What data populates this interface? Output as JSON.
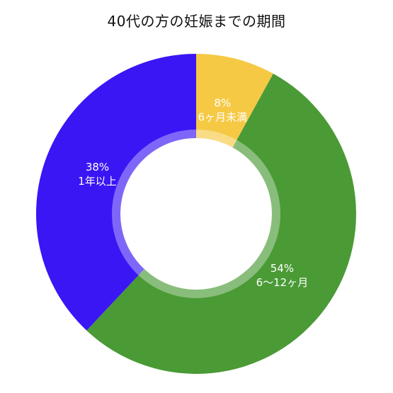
{
  "chart_data": {
    "type": "pie",
    "title": "40代の方の妊娠までの期間",
    "donut": true,
    "slices": [
      {
        "label": "6ヶ月未満",
        "value": 8,
        "value_label": "8%",
        "color": "#f6c945"
      },
      {
        "label": "6〜12ヶ月",
        "value": 54,
        "value_label": "54%",
        "color": "#4a9a35"
      },
      {
        "label": "1年以上",
        "value": 38,
        "value_label": "38%",
        "color": "#3a16f5"
      }
    ],
    "start": "top",
    "direction": "clockwise"
  }
}
